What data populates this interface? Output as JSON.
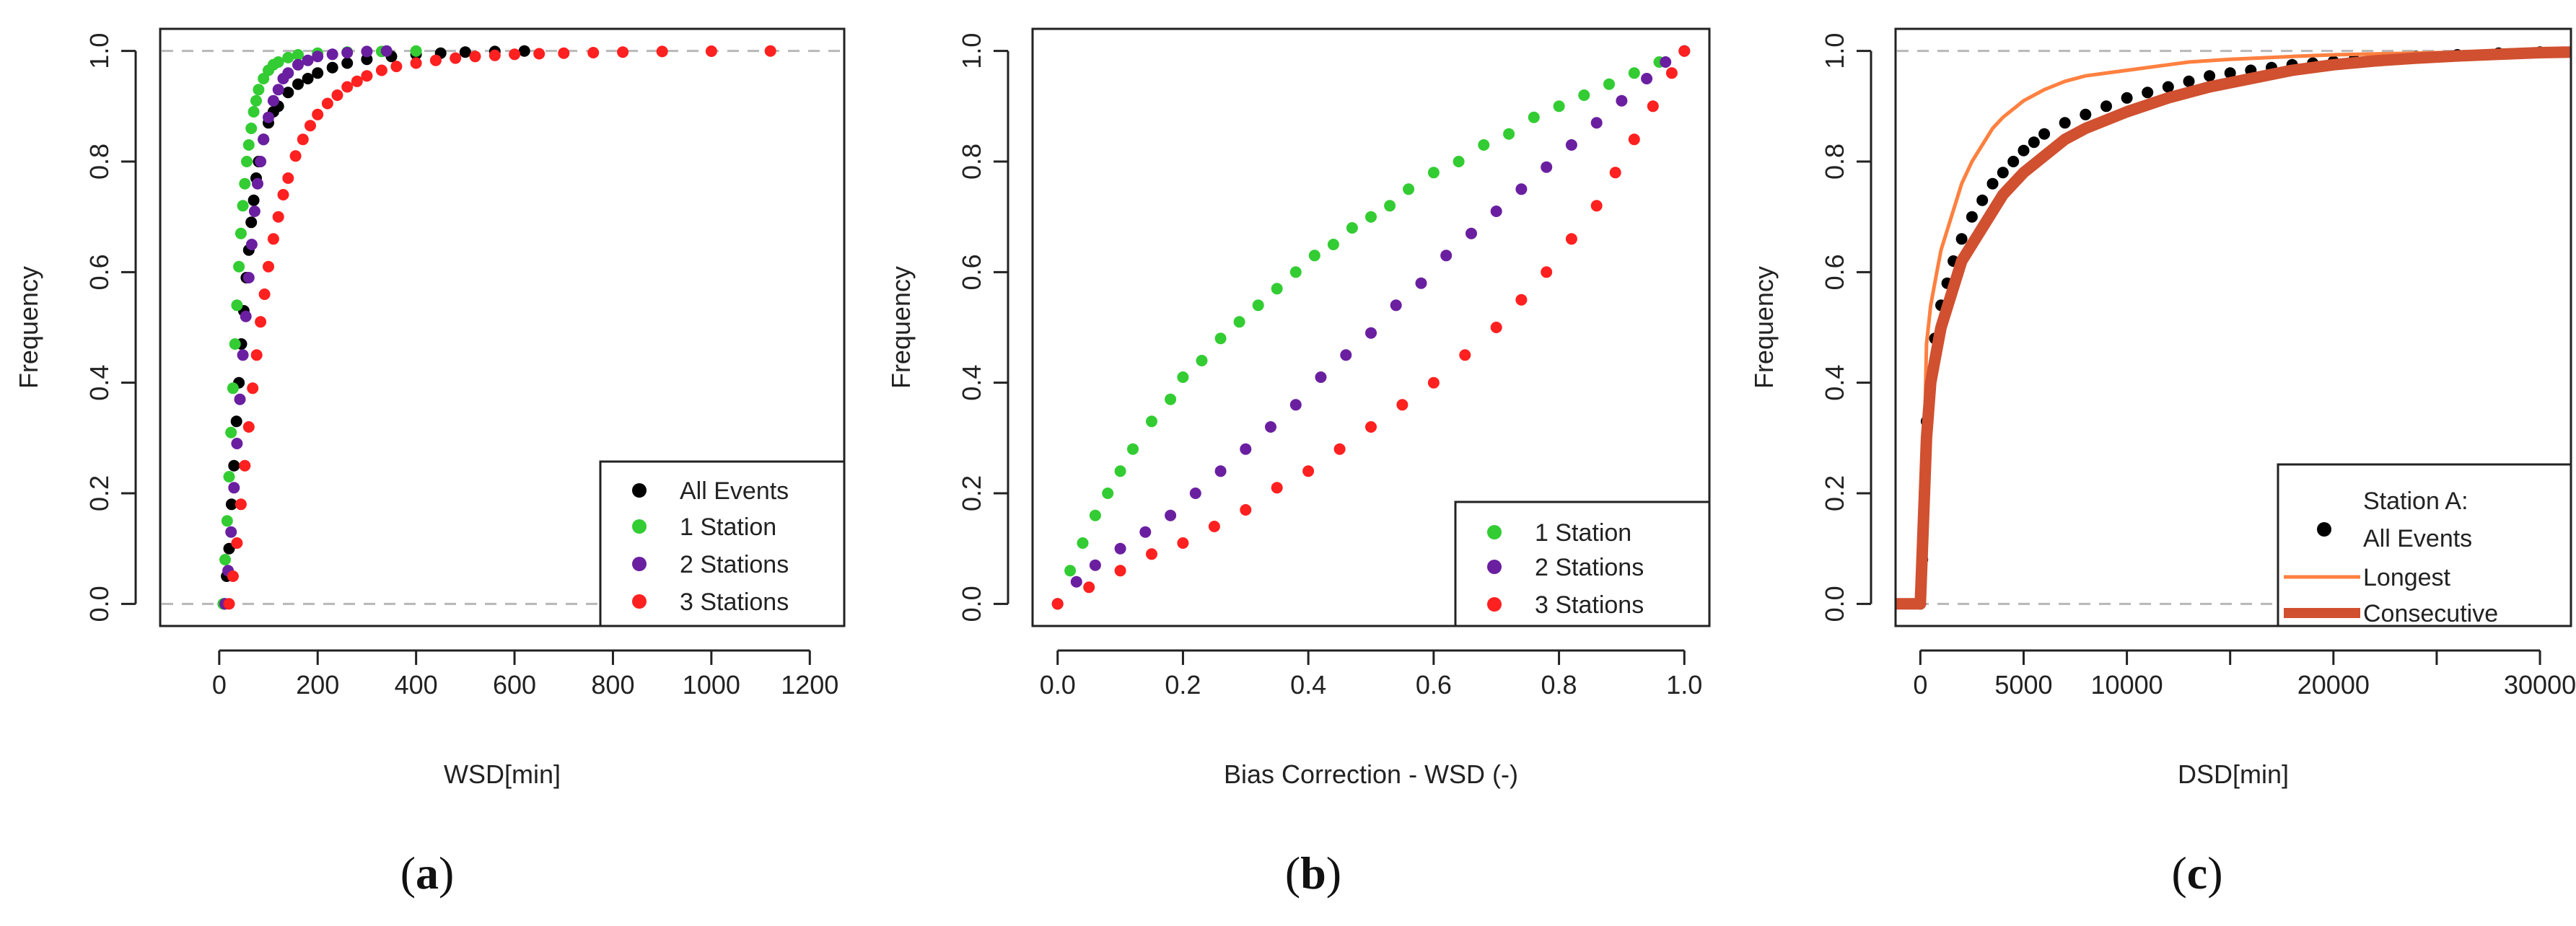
{
  "colors": {
    "black": "#000000",
    "green": "#33cc33",
    "purple": "#6a1fa0",
    "red": "#ff2020",
    "orange": "#ff8040",
    "brown": "#d05030",
    "grid": "#b8b8b8"
  },
  "panels": [
    {
      "caption_open": "(",
      "caption_letter": "a",
      "caption_close": ")"
    },
    {
      "caption_open": "(",
      "caption_letter": "b",
      "caption_close": ")"
    },
    {
      "caption_open": "(",
      "caption_letter": "c",
      "caption_close": ")"
    }
  ],
  "chart_data": [
    {
      "type": "scatter",
      "title": "",
      "xlabel": "WSD[min]",
      "ylabel": "Frequency",
      "xlim": [
        -120,
        1270
      ],
      "ylim": [
        -0.04,
        1.04
      ],
      "xticks": [
        0,
        200,
        400,
        600,
        800,
        1000,
        1200
      ],
      "yticks": [
        0.0,
        0.2,
        0.4,
        0.6,
        0.8,
        1.0
      ],
      "xtick_labels": [
        "0",
        "200",
        "400",
        "600",
        "800",
        "1000",
        "1200"
      ],
      "ytick_labels": [
        "0.0",
        "0.2",
        "0.4",
        "0.6",
        "0.8",
        "1.0"
      ],
      "hlines": [
        0,
        1
      ],
      "legend": {
        "position": "bottom-right",
        "title": "",
        "entries": [
          "All Events",
          "1 Station",
          "2 Stations",
          "3 Stations"
        ]
      },
      "series": [
        {
          "name": "All Events",
          "color": "#000000",
          "kind": "points",
          "x": [
            10,
            15,
            20,
            25,
            30,
            35,
            40,
            45,
            50,
            55,
            60,
            65,
            70,
            75,
            80,
            90,
            100,
            110,
            120,
            140,
            160,
            180,
            200,
            230,
            260,
            300,
            350,
            400,
            450,
            500,
            560,
            620
          ],
          "y": [
            0.0,
            0.05,
            0.1,
            0.18,
            0.25,
            0.33,
            0.4,
            0.47,
            0.53,
            0.59,
            0.64,
            0.69,
            0.73,
            0.77,
            0.8,
            0.84,
            0.87,
            0.89,
            0.9,
            0.925,
            0.94,
            0.95,
            0.96,
            0.97,
            0.978,
            0.985,
            0.99,
            0.994,
            0.996,
            0.998,
            0.999,
            1.0
          ]
        },
        {
          "name": "1 Station",
          "color": "#33cc33",
          "kind": "points",
          "x": [
            8,
            12,
            16,
            20,
            24,
            28,
            32,
            36,
            40,
            44,
            48,
            52,
            56,
            60,
            65,
            70,
            75,
            80,
            90,
            100,
            110,
            120,
            140,
            160,
            200,
            260,
            330,
            400
          ],
          "y": [
            0.0,
            0.08,
            0.15,
            0.23,
            0.31,
            0.39,
            0.47,
            0.54,
            0.61,
            0.67,
            0.72,
            0.76,
            0.8,
            0.83,
            0.86,
            0.89,
            0.91,
            0.93,
            0.95,
            0.965,
            0.975,
            0.98,
            0.988,
            0.993,
            0.996,
            0.998,
            0.999,
            1.0
          ]
        },
        {
          "name": "2 Stations",
          "color": "#6a1fa0",
          "kind": "points",
          "x": [
            12,
            18,
            24,
            30,
            36,
            42,
            48,
            54,
            60,
            66,
            72,
            78,
            84,
            90,
            100,
            110,
            120,
            130,
            140,
            160,
            180,
            200,
            230,
            260,
            300,
            340
          ],
          "y": [
            0.0,
            0.06,
            0.13,
            0.21,
            0.29,
            0.37,
            0.45,
            0.52,
            0.59,
            0.65,
            0.71,
            0.76,
            0.8,
            0.84,
            0.88,
            0.91,
            0.93,
            0.95,
            0.96,
            0.975,
            0.983,
            0.99,
            0.994,
            0.997,
            0.999,
            1.0
          ]
        },
        {
          "name": "3 Stations",
          "color": "#ff2020",
          "kind": "points",
          "x": [
            20,
            28,
            36,
            44,
            52,
            60,
            68,
            76,
            84,
            92,
            100,
            110,
            120,
            130,
            140,
            155,
            170,
            185,
            200,
            220,
            240,
            260,
            280,
            300,
            330,
            360,
            400,
            440,
            480,
            520,
            560,
            600,
            650,
            700,
            760,
            820,
            900,
            1000,
            1120
          ],
          "y": [
            0.0,
            0.05,
            0.11,
            0.18,
            0.25,
            0.32,
            0.39,
            0.45,
            0.51,
            0.56,
            0.61,
            0.66,
            0.7,
            0.74,
            0.77,
            0.81,
            0.84,
            0.865,
            0.885,
            0.905,
            0.92,
            0.935,
            0.945,
            0.955,
            0.965,
            0.972,
            0.978,
            0.983,
            0.987,
            0.99,
            0.992,
            0.994,
            0.995,
            0.996,
            0.997,
            0.998,
            0.999,
            0.9995,
            1.0
          ]
        }
      ]
    },
    {
      "type": "scatter",
      "title": "",
      "xlabel": "Bias Correction - WSD (-)",
      "ylabel": "Frequency",
      "xlim": [
        -0.04,
        1.04
      ],
      "ylim": [
        -0.04,
        1.04
      ],
      "xticks": [
        0.0,
        0.2,
        0.4,
        0.6,
        0.8,
        1.0
      ],
      "yticks": [
        0.0,
        0.2,
        0.4,
        0.6,
        0.8,
        1.0
      ],
      "xtick_labels": [
        "0.0",
        "0.2",
        "0.4",
        "0.6",
        "0.8",
        "1.0"
      ],
      "ytick_labels": [
        "0.0",
        "0.2",
        "0.4",
        "0.6",
        "0.8",
        "1.0"
      ],
      "hlines": [],
      "legend": {
        "position": "bottom-right",
        "title": "",
        "entries": [
          "1 Station",
          "2 Stations",
          "3 Stations"
        ]
      },
      "series": [
        {
          "name": "1 Station",
          "color": "#33cc33",
          "kind": "points",
          "x": [
            0.0,
            0.02,
            0.04,
            0.06,
            0.08,
            0.1,
            0.12,
            0.15,
            0.18,
            0.2,
            0.23,
            0.26,
            0.29,
            0.32,
            0.35,
            0.38,
            0.41,
            0.44,
            0.47,
            0.5,
            0.53,
            0.56,
            0.6,
            0.64,
            0.68,
            0.72,
            0.76,
            0.8,
            0.84,
            0.88,
            0.92,
            0.96,
            1.0
          ],
          "y": [
            0.0,
            0.06,
            0.11,
            0.16,
            0.2,
            0.24,
            0.28,
            0.33,
            0.37,
            0.41,
            0.44,
            0.48,
            0.51,
            0.54,
            0.57,
            0.6,
            0.63,
            0.65,
            0.68,
            0.7,
            0.72,
            0.75,
            0.78,
            0.8,
            0.83,
            0.85,
            0.88,
            0.9,
            0.92,
            0.94,
            0.96,
            0.98,
            1.0
          ]
        },
        {
          "name": "2 Stations",
          "color": "#6a1fa0",
          "kind": "points",
          "x": [
            0.0,
            0.03,
            0.06,
            0.1,
            0.14,
            0.18,
            0.22,
            0.26,
            0.3,
            0.34,
            0.38,
            0.42,
            0.46,
            0.5,
            0.54,
            0.58,
            0.62,
            0.66,
            0.7,
            0.74,
            0.78,
            0.82,
            0.86,
            0.9,
            0.94,
            0.97,
            1.0
          ],
          "y": [
            0.0,
            0.04,
            0.07,
            0.1,
            0.13,
            0.16,
            0.2,
            0.24,
            0.28,
            0.32,
            0.36,
            0.41,
            0.45,
            0.49,
            0.54,
            0.58,
            0.63,
            0.67,
            0.71,
            0.75,
            0.79,
            0.83,
            0.87,
            0.91,
            0.95,
            0.98,
            1.0
          ]
        },
        {
          "name": "3 Stations",
          "color": "#ff2020",
          "kind": "points",
          "x": [
            0.0,
            0.05,
            0.1,
            0.15,
            0.2,
            0.25,
            0.3,
            0.35,
            0.4,
            0.45,
            0.5,
            0.55,
            0.6,
            0.65,
            0.7,
            0.74,
            0.78,
            0.82,
            0.86,
            0.89,
            0.92,
            0.95,
            0.98,
            1.0
          ],
          "y": [
            0.0,
            0.03,
            0.06,
            0.09,
            0.11,
            0.14,
            0.17,
            0.21,
            0.24,
            0.28,
            0.32,
            0.36,
            0.4,
            0.45,
            0.5,
            0.55,
            0.6,
            0.66,
            0.72,
            0.78,
            0.84,
            0.9,
            0.96,
            1.0
          ]
        }
      ]
    },
    {
      "type": "line",
      "title": "",
      "xlabel": "DSD[min]",
      "ylabel": "Frequency",
      "xlim": [
        -1200,
        31500
      ],
      "ylim": [
        -0.04,
        1.04
      ],
      "xticks": [
        0,
        5000,
        10000,
        15000,
        20000,
        25000,
        30000
      ],
      "yticks": [
        0.0,
        0.2,
        0.4,
        0.6,
        0.8,
        1.0
      ],
      "xtick_labels": [
        "0",
        "5000",
        "10000",
        "",
        "20000",
        "",
        "30000"
      ],
      "ytick_labels": [
        "0.0",
        "0.2",
        "0.4",
        "0.6",
        "0.8",
        "1.0"
      ],
      "hlines": [
        0,
        1
      ],
      "legend": {
        "position": "bottom-right",
        "title": "Station A:",
        "entries": [
          "All Events",
          "Longest",
          "Consecutive"
        ]
      },
      "series": [
        {
          "name": "All Events",
          "color": "#000000",
          "kind": "points",
          "x": [
            0,
            100,
            200,
            300,
            500,
            700,
            1000,
            1300,
            1600,
            2000,
            2500,
            3000,
            3500,
            4000,
            4500,
            5000,
            5500,
            6000,
            7000,
            8000,
            9000,
            10000,
            11000,
            12000,
            13000,
            14000,
            15000,
            16000,
            17000,
            18000,
            19000,
            20000,
            21000,
            22000,
            23000,
            24000,
            26000,
            28000,
            30000
          ],
          "y": [
            0.0,
            0.08,
            0.2,
            0.33,
            0.42,
            0.48,
            0.54,
            0.58,
            0.62,
            0.66,
            0.7,
            0.73,
            0.76,
            0.78,
            0.8,
            0.82,
            0.835,
            0.85,
            0.87,
            0.885,
            0.9,
            0.915,
            0.925,
            0.935,
            0.945,
            0.955,
            0.96,
            0.965,
            0.97,
            0.975,
            0.978,
            0.981,
            0.984,
            0.986,
            0.988,
            0.99,
            0.993,
            0.996,
            0.998
          ]
        },
        {
          "name": "Longest",
          "color": "#ff8040",
          "kind": "line",
          "x": [
            0,
            50,
            200,
            300,
            500,
            800,
            1000,
            1500,
            2000,
            2500,
            3000,
            3500,
            4000,
            5000,
            6000,
            7000,
            8000,
            10000,
            12000,
            13000,
            15000,
            18000,
            20000,
            25000,
            31500
          ],
          "y": [
            0.0,
            0.1,
            0.3,
            0.47,
            0.54,
            0.6,
            0.64,
            0.7,
            0.76,
            0.8,
            0.83,
            0.86,
            0.88,
            0.91,
            0.93,
            0.945,
            0.955,
            0.965,
            0.975,
            0.98,
            0.985,
            0.99,
            0.993,
            0.997,
            1.0
          ]
        },
        {
          "name": "Consecutive",
          "color": "#d05030",
          "kind": "thickline",
          "x": [
            -1200,
            0,
            100,
            300,
            500,
            800,
            1000,
            1500,
            2000,
            3000,
            4000,
            5000,
            6000,
            7000,
            8000,
            9000,
            10000,
            12000,
            14000,
            16000,
            18000,
            20000,
            22000,
            24000,
            26000,
            28000,
            30000,
            31500
          ],
          "y": [
            0.0,
            0.0,
            0.1,
            0.3,
            0.4,
            0.46,
            0.5,
            0.56,
            0.62,
            0.68,
            0.74,
            0.78,
            0.81,
            0.84,
            0.86,
            0.875,
            0.89,
            0.915,
            0.935,
            0.95,
            0.965,
            0.975,
            0.982,
            0.987,
            0.991,
            0.994,
            0.997,
            0.998
          ]
        }
      ]
    }
  ]
}
